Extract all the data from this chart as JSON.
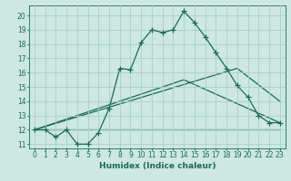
{
  "xlabel": "Humidex (Indice chaleur)",
  "xlim": [
    -0.5,
    23.5
  ],
  "ylim": [
    10.7,
    20.7
  ],
  "yticks": [
    11,
    12,
    13,
    14,
    15,
    16,
    17,
    18,
    19,
    20
  ],
  "xticks": [
    0,
    1,
    2,
    3,
    4,
    5,
    6,
    7,
    8,
    9,
    10,
    11,
    12,
    13,
    14,
    15,
    16,
    17,
    18,
    19,
    20,
    21,
    22,
    23
  ],
  "background_color": "#cce8e0",
  "grid_color": "#aacfc8",
  "line_color": "#1a6b5a",
  "line1_x": [
    0,
    1,
    2,
    3,
    4,
    5,
    6,
    7,
    8,
    9,
    10,
    11,
    12,
    13,
    14,
    15,
    16,
    17,
    18,
    19,
    20,
    21,
    22,
    23
  ],
  "line1_y": [
    12,
    12,
    11.5,
    12,
    11,
    11,
    11.8,
    13.5,
    16.3,
    16.2,
    18.1,
    19.0,
    18.8,
    19.0,
    20.3,
    19.5,
    18.5,
    17.4,
    16.3,
    15.1,
    14.3,
    13.0,
    12.5,
    12.5
  ],
  "line2_x": [
    0,
    23
  ],
  "line2_y": [
    12,
    12
  ],
  "line3_x": [
    0,
    19,
    23
  ],
  "line3_y": [
    12,
    16.3,
    14.0
  ],
  "line4_x": [
    0,
    14,
    23
  ],
  "line4_y": [
    12,
    15.5,
    12.5
  ]
}
